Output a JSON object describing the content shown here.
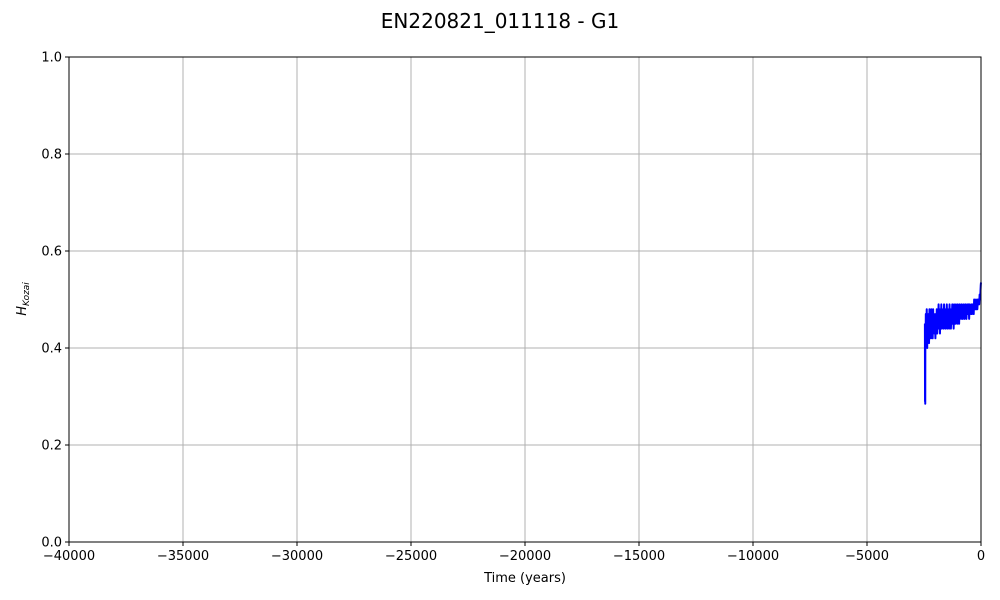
{
  "chart_data": {
    "type": "line",
    "title": "EN220821_011118 - G1",
    "xlabel": "Time (years)",
    "ylabel": {
      "main": "H",
      "sub": "Kozai"
    },
    "xlim": [
      -40000,
      0
    ],
    "ylim": [
      0.0,
      1.0
    ],
    "grid": true,
    "x_ticks": [
      -40000,
      -35000,
      -30000,
      -25000,
      -20000,
      -15000,
      -10000,
      -5000,
      0
    ],
    "x_tick_labels": [
      "−40000",
      "−35000",
      "−30000",
      "−25000",
      "−20000",
      "−15000",
      "−10000",
      "−5000",
      "0"
    ],
    "y_ticks": [
      0.0,
      0.2,
      0.4,
      0.6,
      0.8,
      1.0
    ],
    "y_tick_labels": [
      "0.0",
      "0.2",
      "0.4",
      "0.6",
      "0.8",
      "1.0"
    ],
    "series": [
      {
        "color": "#0000ff",
        "x": [
          -2460,
          -2455,
          -2450,
          -2445,
          -2440,
          -2430,
          -2420,
          -2400,
          -2380,
          -2360,
          -2340,
          -2320,
          -2300,
          -2280,
          -2260,
          -2240,
          -2220,
          -2200,
          -2180,
          -2160,
          -2140,
          -2120,
          -2100,
          -2080,
          -2060,
          -2040,
          -2020,
          -2000,
          -1980,
          -1960,
          -1940,
          -1920,
          -1900,
          -1880,
          -1860,
          -1840,
          -1820,
          -1800,
          -1780,
          -1760,
          -1740,
          -1720,
          -1700,
          -1680,
          -1660,
          -1640,
          -1620,
          -1600,
          -1580,
          -1560,
          -1540,
          -1520,
          -1500,
          -1480,
          -1460,
          -1440,
          -1420,
          -1400,
          -1380,
          -1360,
          -1340,
          -1320,
          -1300,
          -1280,
          -1260,
          -1240,
          -1220,
          -1200,
          -1180,
          -1160,
          -1140,
          -1120,
          -1100,
          -1080,
          -1060,
          -1040,
          -1020,
          -1000,
          -980,
          -960,
          -940,
          -920,
          -900,
          -880,
          -860,
          -840,
          -820,
          -800,
          -780,
          -760,
          -740,
          -720,
          -700,
          -680,
          -660,
          -640,
          -620,
          -600,
          -580,
          -560,
          -540,
          -520,
          -500,
          -480,
          -460,
          -440,
          -420,
          -400,
          -380,
          -360,
          -340,
          -320,
          -300,
          -280,
          -260,
          -240,
          -220,
          -200,
          -180,
          -160,
          -140,
          -120,
          -100,
          -80,
          -60,
          -40,
          -20,
          -10,
          0
        ],
        "y": [
          0.45,
          0.29,
          0.44,
          0.285,
          0.45,
          0.42,
          0.47,
          0.43,
          0.48,
          0.4,
          0.46,
          0.43,
          0.47,
          0.41,
          0.48,
          0.44,
          0.46,
          0.42,
          0.48,
          0.43,
          0.47,
          0.42,
          0.48,
          0.44,
          0.47,
          0.43,
          0.46,
          0.42,
          0.47,
          0.44,
          0.48,
          0.43,
          0.47,
          0.45,
          0.49,
          0.44,
          0.48,
          0.43,
          0.47,
          0.45,
          0.49,
          0.44,
          0.48,
          0.45,
          0.47,
          0.44,
          0.49,
          0.45,
          0.48,
          0.44,
          0.47,
          0.45,
          0.49,
          0.44,
          0.48,
          0.45,
          0.47,
          0.44,
          0.49,
          0.45,
          0.48,
          0.44,
          0.47,
          0.46,
          0.49,
          0.45,
          0.48,
          0.44,
          0.49,
          0.46,
          0.48,
          0.45,
          0.49,
          0.46,
          0.48,
          0.45,
          0.49,
          0.46,
          0.48,
          0.45,
          0.49,
          0.46,
          0.48,
          0.47,
          0.49,
          0.46,
          0.48,
          0.46,
          0.49,
          0.47,
          0.48,
          0.46,
          0.49,
          0.47,
          0.49,
          0.46,
          0.48,
          0.47,
          0.49,
          0.47,
          0.49,
          0.46,
          0.49,
          0.47,
          0.48,
          0.47,
          0.49,
          0.47,
          0.49,
          0.48,
          0.49,
          0.47,
          0.5,
          0.48,
          0.49,
          0.48,
          0.5,
          0.48,
          0.49,
          0.48,
          0.5,
          0.49,
          0.5,
          0.49,
          0.51,
          0.5,
          0.52,
          0.53,
          0.535
        ]
      }
    ]
  }
}
